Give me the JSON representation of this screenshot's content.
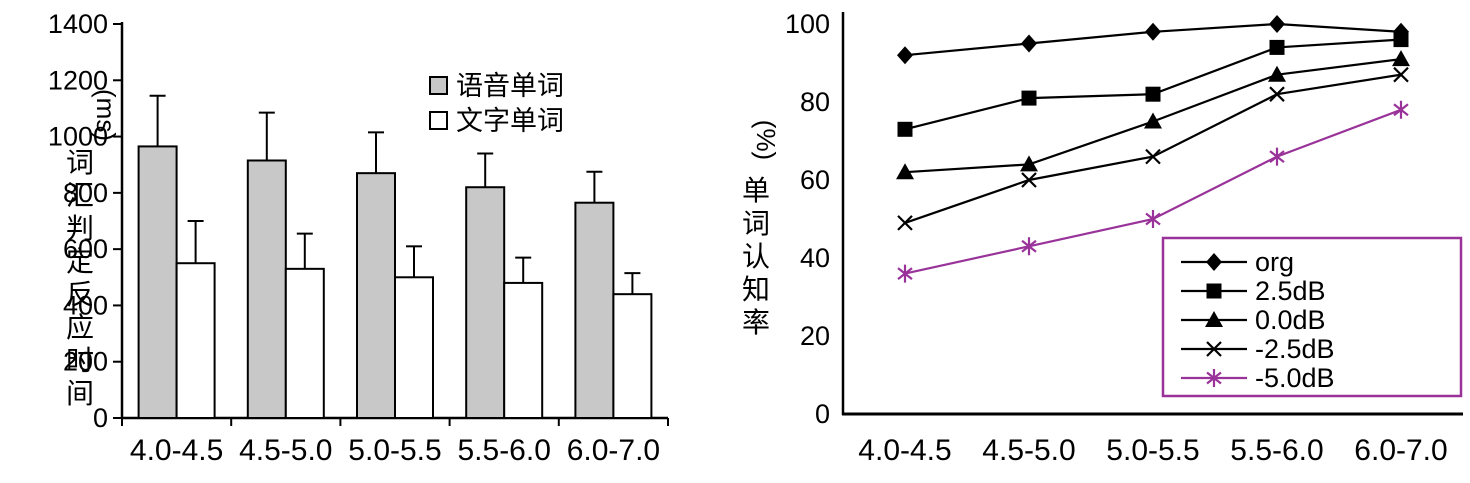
{
  "figure": {
    "background": "#ffffff",
    "text_color": "#000000",
    "accent_magenta": "#993399",
    "bar_gray_fill": "#c8c8c8",
    "bar_white_fill": "#ffffff"
  },
  "chart_data": [
    {
      "id": "reaction-time-bar-chart",
      "type": "bar",
      "ylabel_unit_rotated": "(ms)",
      "ylabel_vertical": "词汇判定反应时间",
      "categories": [
        "4.0-4.5",
        "4.5-5.0",
        "5.0-5.5",
        "5.5-6.0",
        "6.0-7.0"
      ],
      "ylim": [
        0,
        1400
      ],
      "yticks": [
        0,
        200,
        400,
        600,
        800,
        1000,
        1200,
        1400
      ],
      "grid": false,
      "legend_position": "top-right",
      "series": [
        {
          "name": "语音单词",
          "fill": "#c8c8c8",
          "values": [
            965,
            915,
            870,
            820,
            765
          ],
          "error_up": [
            180,
            170,
            145,
            120,
            110
          ]
        },
        {
          "name": "文字单词",
          "fill": "#ffffff",
          "values": [
            550,
            530,
            500,
            480,
            440
          ],
          "error_up": [
            150,
            125,
            110,
            90,
            75
          ]
        }
      ]
    },
    {
      "id": "recognition-rate-line-chart",
      "type": "line",
      "ylabel_unit_rotated": "(%)",
      "ylabel_vertical": "单词认知率",
      "categories": [
        "4.0-4.5",
        "4.5-5.0",
        "5.0-5.5",
        "5.5-6.0",
        "6.0-7.0"
      ],
      "ylim": [
        0,
        100
      ],
      "yticks": [
        0,
        20,
        40,
        60,
        80,
        100
      ],
      "grid": false,
      "legend_position": "bottom-right",
      "legend_border_color": "#993399",
      "series": [
        {
          "name": "org",
          "marker": "diamond",
          "color": "#000000",
          "values": [
            92,
            95,
            98,
            100,
            98
          ]
        },
        {
          "name": "2.5dB",
          "marker": "square",
          "color": "#000000",
          "values": [
            73,
            81,
            82,
            94,
            96
          ]
        },
        {
          "name": "0.0dB",
          "marker": "triangle",
          "color": "#000000",
          "values": [
            62,
            64,
            75,
            87,
            91
          ]
        },
        {
          "name": "-2.5dB",
          "marker": "x-cross",
          "color": "#000000",
          "values": [
            49,
            60,
            66,
            82,
            87
          ]
        },
        {
          "name": "-5.0dB",
          "marker": "asterisk",
          "color": "#993399",
          "values": [
            36,
            43,
            50,
            66,
            78
          ]
        }
      ]
    }
  ]
}
